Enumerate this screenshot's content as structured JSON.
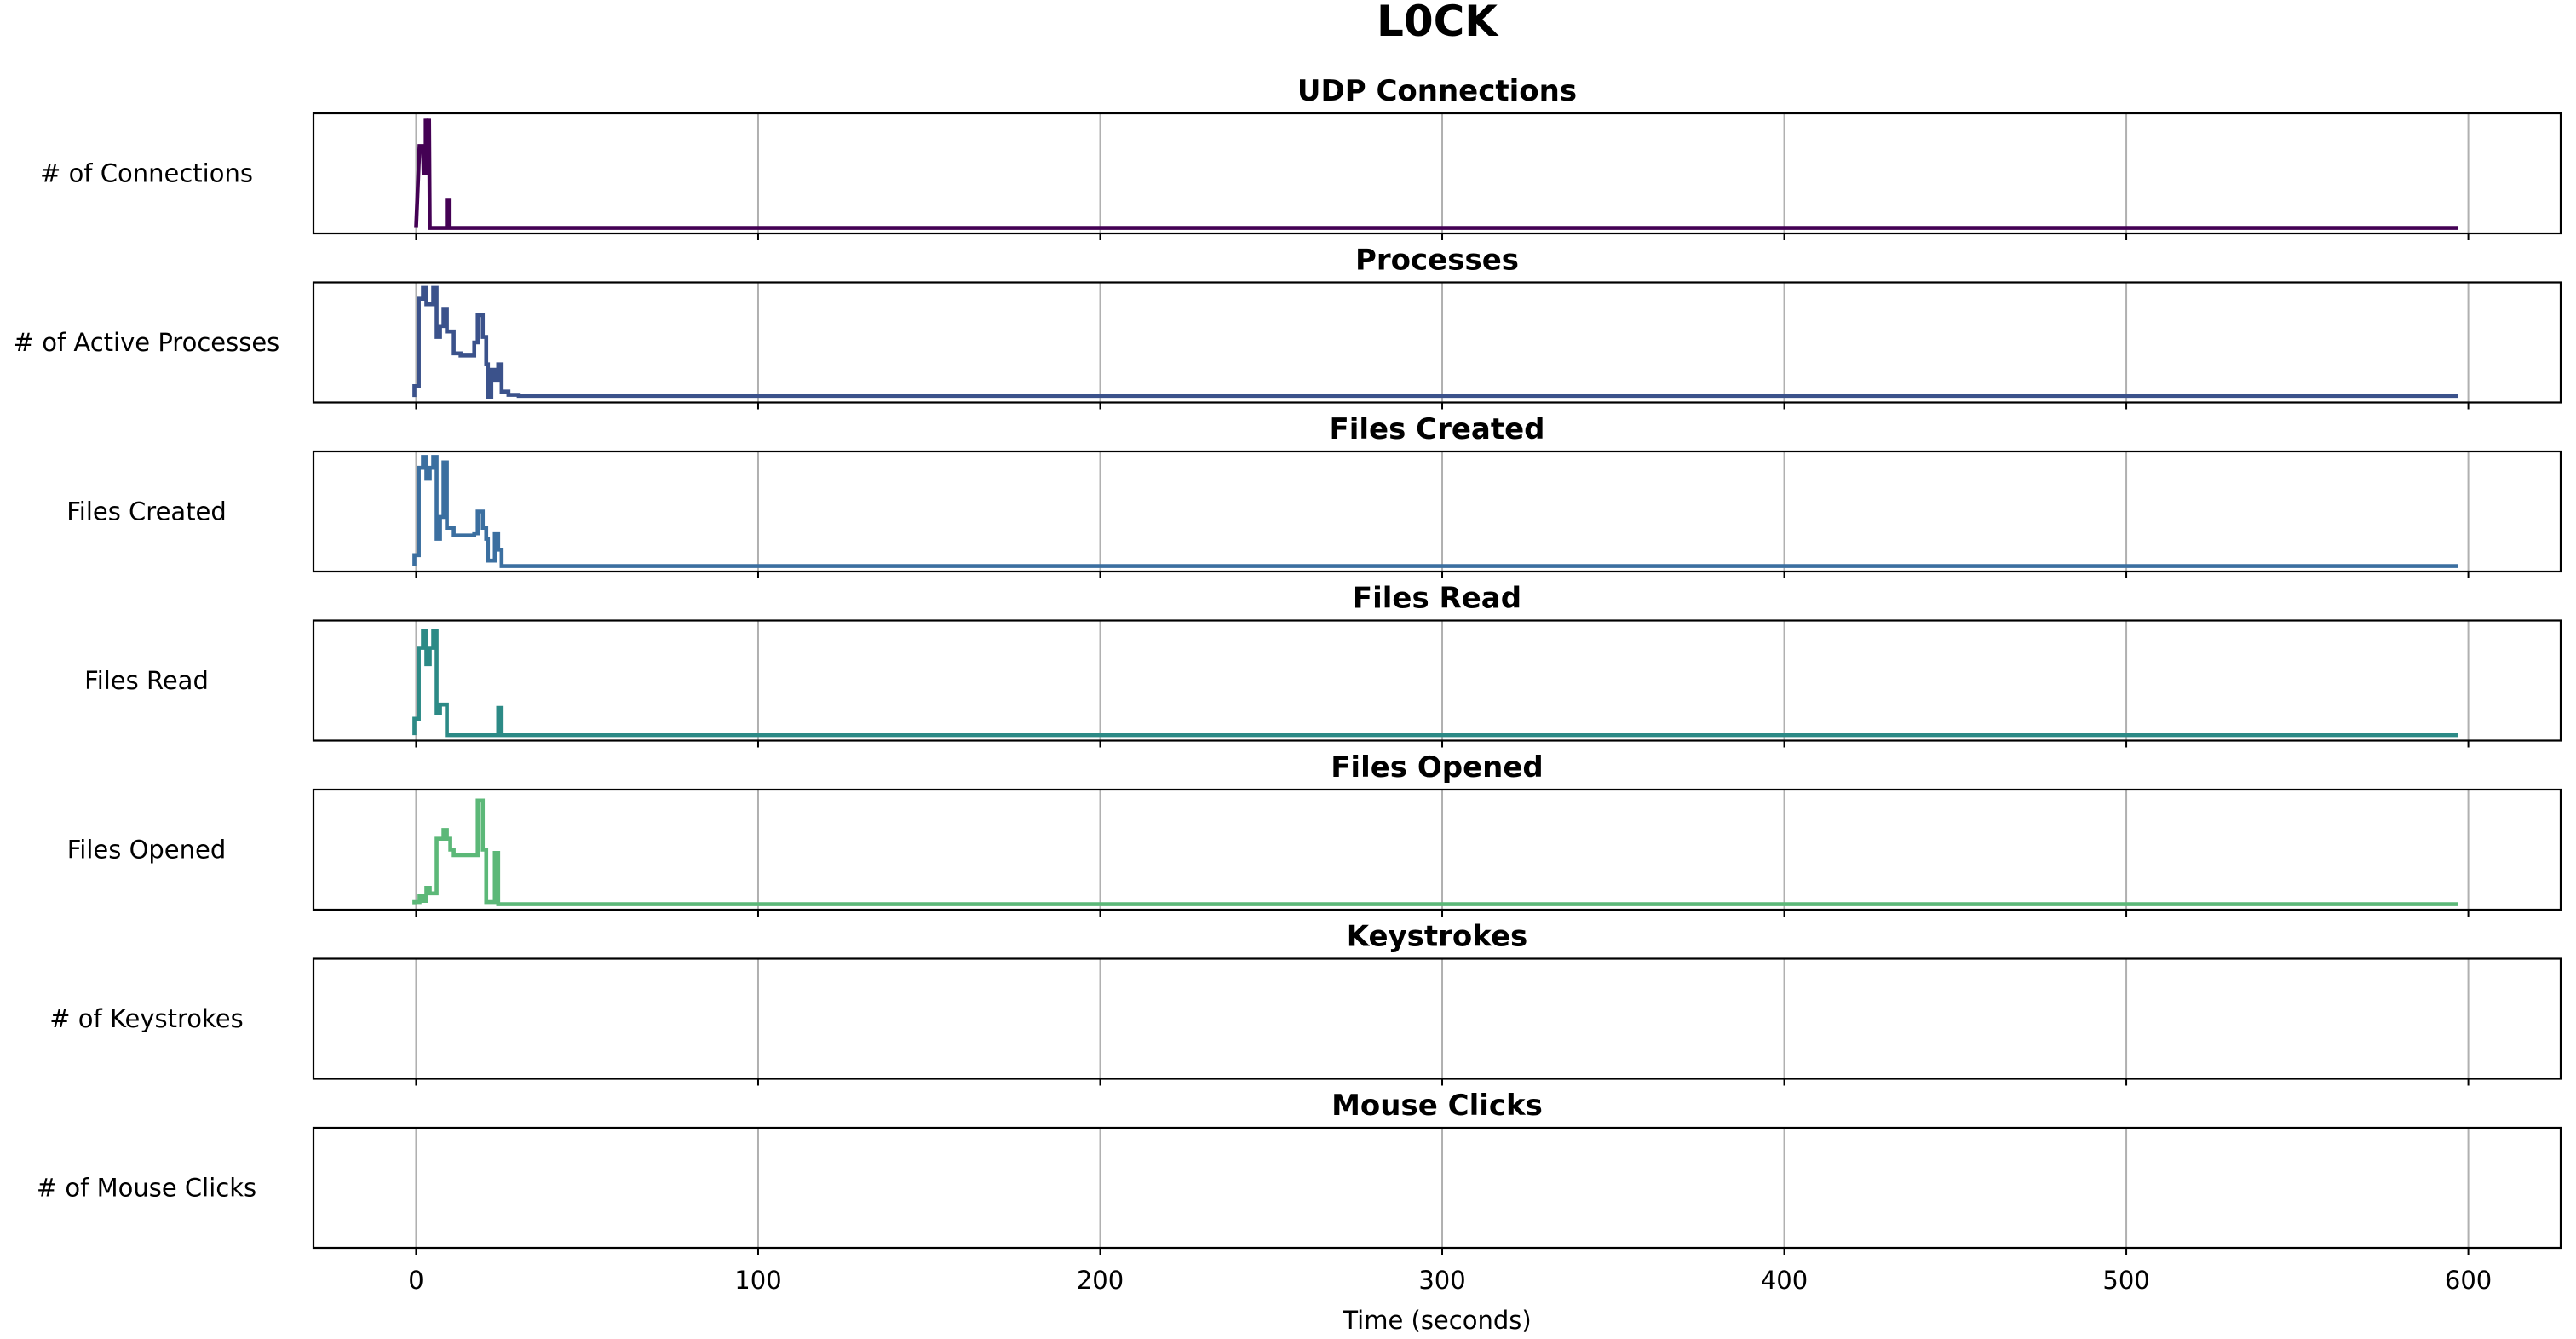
{
  "chart_data": {
    "type": "line",
    "title": "L0CK",
    "xlabel": "Time (seconds)",
    "xlim": [
      -30,
      627
    ],
    "x_ticks": [
      0,
      100,
      200,
      300,
      400,
      500,
      600
    ],
    "x_tick_labels": [
      "0",
      "100",
      "200",
      "300",
      "400",
      "500",
      "600"
    ],
    "grid": true,
    "x_max_data": 597,
    "panels": [
      {
        "title": "UDP Connections",
        "ylabel": "# of Connections",
        "color": "#440154",
        "ylim": [
          -0.05,
          1.05
        ],
        "steps": [
          [
            0,
            0
          ],
          [
            1,
            0.75
          ],
          [
            2,
            0.75
          ],
          [
            2.2,
            0.5
          ],
          [
            2.8,
            0.5
          ],
          [
            2.8,
            1.0
          ],
          [
            3.2,
            0.75
          ],
          [
            3.8,
            1.0
          ],
          [
            4.0,
            0
          ],
          [
            9.0,
            0
          ],
          [
            9.0,
            0.25
          ],
          [
            9.8,
            0.25
          ],
          [
            9.8,
            0
          ],
          [
            597,
            0
          ]
        ]
      },
      {
        "title": "Processes",
        "ylabel": "# of Active Processes",
        "color": "#3b528b",
        "ylim": [
          -0.05,
          1.05
        ],
        "steps": [
          [
            -0.5,
            0
          ],
          [
            -0.5,
            0.1
          ],
          [
            0.8,
            0.1
          ],
          [
            0.8,
            0.9
          ],
          [
            2,
            0.9
          ],
          [
            2,
            1.0
          ],
          [
            3,
            1.0
          ],
          [
            3,
            0.85
          ],
          [
            5,
            0.85
          ],
          [
            5,
            1.0
          ],
          [
            6,
            1.0
          ],
          [
            6,
            0.55
          ],
          [
            7,
            0.55
          ],
          [
            7,
            0.65
          ],
          [
            8,
            0.65
          ],
          [
            8,
            0.8
          ],
          [
            9,
            0.8
          ],
          [
            9,
            0.6
          ],
          [
            11,
            0.6
          ],
          [
            11,
            0.4
          ],
          [
            13,
            0.4
          ],
          [
            13,
            0.38
          ],
          [
            17,
            0.38
          ],
          [
            17,
            0.5
          ],
          [
            18,
            0.5
          ],
          [
            18,
            0.75
          ],
          [
            19.5,
            0.75
          ],
          [
            19.5,
            0.55
          ],
          [
            20.5,
            0.55
          ],
          [
            20.5,
            0.3
          ],
          [
            21,
            0.3
          ],
          [
            21,
            0.0
          ],
          [
            22,
            0.0
          ],
          [
            22,
            0.25
          ],
          [
            23,
            0.25
          ],
          [
            23,
            0.15
          ],
          [
            24,
            0.15
          ],
          [
            24,
            0.3
          ],
          [
            25,
            0.3
          ],
          [
            25,
            0.05
          ],
          [
            27,
            0.05
          ],
          [
            27,
            0.02
          ],
          [
            30,
            0.02
          ],
          [
            30,
            0.01
          ],
          [
            597,
            0.01
          ]
        ]
      },
      {
        "title": "Files Created",
        "ylabel": "Files Created",
        "color": "#3b6fa0",
        "ylim": [
          -0.05,
          1.05
        ],
        "steps": [
          [
            -0.5,
            0
          ],
          [
            -0.5,
            0.1
          ],
          [
            0.8,
            0.1
          ],
          [
            0.8,
            0.9
          ],
          [
            2,
            0.9
          ],
          [
            2,
            1.0
          ],
          [
            3,
            1.0
          ],
          [
            3,
            0.8
          ],
          [
            4,
            0.8
          ],
          [
            4,
            0.9
          ],
          [
            5,
            0.9
          ],
          [
            5,
            1.0
          ],
          [
            6,
            1.0
          ],
          [
            6,
            0.25
          ],
          [
            7,
            0.25
          ],
          [
            7,
            0.45
          ],
          [
            8,
            0.45
          ],
          [
            8,
            0.95
          ],
          [
            9,
            0.95
          ],
          [
            9,
            0.35
          ],
          [
            11,
            0.35
          ],
          [
            11,
            0.28
          ],
          [
            17,
            0.28
          ],
          [
            17,
            0.3
          ],
          [
            18,
            0.3
          ],
          [
            18,
            0.5
          ],
          [
            19.5,
            0.5
          ],
          [
            19.5,
            0.35
          ],
          [
            20.5,
            0.35
          ],
          [
            20.5,
            0.25
          ],
          [
            21,
            0.25
          ],
          [
            21,
            0.05
          ],
          [
            23,
            0.05
          ],
          [
            23,
            0.3
          ],
          [
            24,
            0.3
          ],
          [
            24,
            0.15
          ],
          [
            25,
            0.15
          ],
          [
            25,
            0.0
          ],
          [
            597,
            0.0
          ]
        ]
      },
      {
        "title": "Files Read",
        "ylabel": "Files Read",
        "color": "#2c8a86",
        "ylim": [
          -0.05,
          1.05
        ],
        "steps": [
          [
            -0.5,
            0
          ],
          [
            -0.5,
            0.15
          ],
          [
            0.8,
            0.15
          ],
          [
            0.8,
            0.8
          ],
          [
            2,
            0.8
          ],
          [
            2,
            0.95
          ],
          [
            3,
            0.95
          ],
          [
            3,
            0.65
          ],
          [
            4,
            0.65
          ],
          [
            4,
            0.8
          ],
          [
            5,
            0.8
          ],
          [
            5,
            0.95
          ],
          [
            6,
            0.95
          ],
          [
            6,
            0.2
          ],
          [
            7,
            0.2
          ],
          [
            7,
            0.28
          ],
          [
            9,
            0.28
          ],
          [
            9,
            0.0
          ],
          [
            24,
            0.0
          ],
          [
            24,
            0.25
          ],
          [
            25,
            0.25
          ],
          [
            25,
            0.0
          ],
          [
            597,
            0.0
          ]
        ]
      },
      {
        "title": "Files Opened",
        "ylabel": "Files Opened",
        "color": "#5cb878",
        "ylim": [
          -0.05,
          1.05
        ],
        "steps": [
          [
            -0.5,
            0
          ],
          [
            -0.5,
            0.02
          ],
          [
            1,
            0.02
          ],
          [
            1,
            0.08
          ],
          [
            2,
            0.08
          ],
          [
            2,
            0.03
          ],
          [
            3,
            0.03
          ],
          [
            3,
            0.15
          ],
          [
            4,
            0.15
          ],
          [
            4,
            0.1
          ],
          [
            6,
            0.1
          ],
          [
            6,
            0.6
          ],
          [
            8,
            0.6
          ],
          [
            8,
            0.68
          ],
          [
            9,
            0.68
          ],
          [
            9,
            0.6
          ],
          [
            10,
            0.6
          ],
          [
            10,
            0.5
          ],
          [
            11,
            0.5
          ],
          [
            11,
            0.45
          ],
          [
            18,
            0.45
          ],
          [
            18,
            0.95
          ],
          [
            19.5,
            0.95
          ],
          [
            19.5,
            0.5
          ],
          [
            20.5,
            0.5
          ],
          [
            20.5,
            0.02
          ],
          [
            23,
            0.02
          ],
          [
            23,
            0.47
          ],
          [
            24,
            0.47
          ],
          [
            24,
            0.0
          ],
          [
            597,
            0.0
          ]
        ]
      },
      {
        "title": "Keystrokes",
        "ylabel": "# of Keystrokes",
        "color": "#7ad151",
        "ylim": [
          -0.05,
          1.05
        ],
        "steps": []
      },
      {
        "title": "Mouse Clicks",
        "ylabel": "# of Mouse Clicks",
        "color": "#fde725",
        "ylim": [
          -0.05,
          1.05
        ],
        "steps": []
      }
    ]
  }
}
